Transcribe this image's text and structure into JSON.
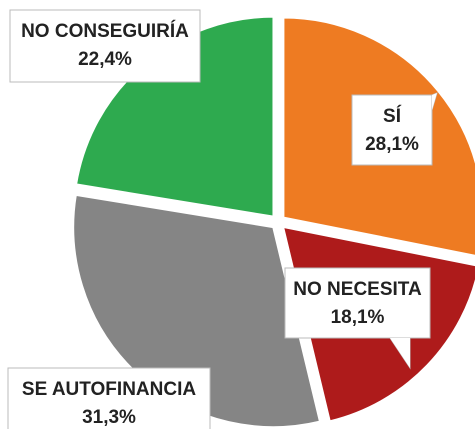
{
  "chart_data": {
    "type": "pie",
    "categories": [
      "SÍ",
      "NO NECESITA",
      "SE AUTOFINANCIA",
      "NO CONSEGUIRÍA"
    ],
    "values": [
      28.1,
      18.1,
      31.3,
      22.4
    ],
    "value_labels": [
      "28,1%",
      "18,1%",
      "31,3%",
      "22,4%"
    ],
    "colors": [
      "#ee7b22",
      "#ae1b1b",
      "#858585",
      "#2eaa4f"
    ]
  }
}
